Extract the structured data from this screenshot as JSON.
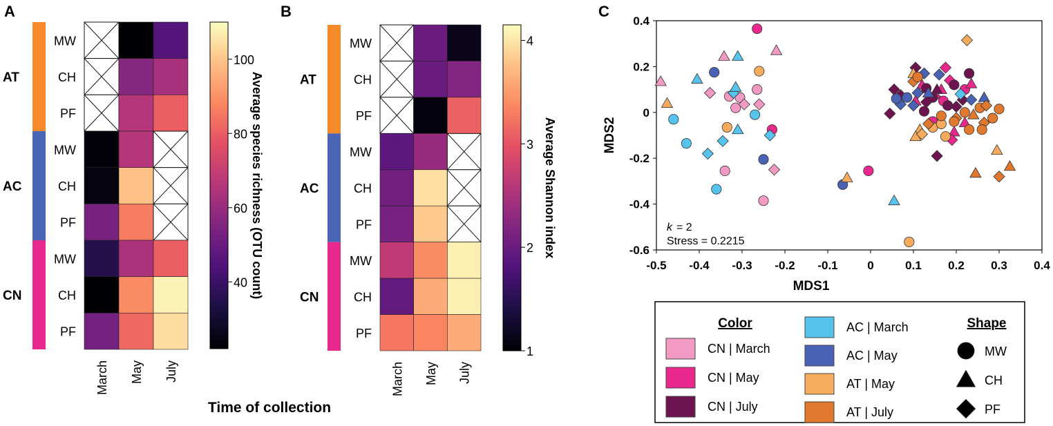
{
  "figure": {
    "panel_labels": [
      "A",
      "B",
      "C"
    ],
    "shared_xlabel": "Time of collection"
  },
  "chart_data": [
    {
      "type": "heatmap",
      "panel": "A",
      "rows": [
        "MW",
        "CH",
        "PF",
        "MW",
        "CH",
        "PF",
        "MW",
        "CH",
        "PF"
      ],
      "groups": [
        {
          "name": "AT",
          "color": "#f58a2a",
          "rows": [
            0,
            2
          ]
        },
        {
          "name": "AC",
          "color": "#4a65b5",
          "rows": [
            3,
            5
          ]
        },
        {
          "name": "CN",
          "color": "#e8288d",
          "rows": [
            6,
            8
          ]
        }
      ],
      "columns": [
        "March",
        "May",
        "July"
      ],
      "values": [
        [
          null,
          22,
          45
        ],
        [
          null,
          56,
          63
        ],
        [
          null,
          66,
          80
        ],
        [
          23,
          66,
          null
        ],
        [
          24,
          99,
          null
        ],
        [
          53,
          86,
          null
        ],
        [
          35,
          64,
          80
        ],
        [
          22,
          89,
          108
        ],
        [
          52,
          82,
          104
        ]
      ],
      "colorbar": {
        "label": "Average species richness (OTU count)",
        "range": [
          22,
          110
        ],
        "ticks": [
          40,
          60,
          80,
          100
        ]
      }
    },
    {
      "type": "heatmap",
      "panel": "B",
      "rows": [
        "MW",
        "CH",
        "PF",
        "MW",
        "CH",
        "PF",
        "MW",
        "CH",
        "PF"
      ],
      "groups": [
        {
          "name": "AT",
          "color": "#f58a2a",
          "rows": [
            0,
            2
          ]
        },
        {
          "name": "AC",
          "color": "#4a65b5",
          "rows": [
            3,
            5
          ]
        },
        {
          "name": "CN",
          "color": "#e8288d",
          "rows": [
            6,
            8
          ]
        }
      ],
      "columns": [
        "March",
        "May",
        "July"
      ],
      "values": [
        [
          null,
          2.0,
          1.15
        ],
        [
          null,
          2.0,
          2.2
        ],
        [
          null,
          1.05,
          3.1
        ],
        [
          1.9,
          2.35,
          null
        ],
        [
          2.05,
          3.95,
          null
        ],
        [
          2.1,
          3.8,
          null
        ],
        [
          2.65,
          3.4,
          4.05
        ],
        [
          1.95,
          3.6,
          4.05
        ],
        [
          3.25,
          3.35,
          3.6
        ]
      ],
      "colorbar": {
        "label": "Average Shannon index",
        "range": [
          1,
          4.15
        ],
        "ticks": [
          1,
          2,
          3,
          4
        ]
      }
    },
    {
      "type": "scatter",
      "panel": "C",
      "xlabel": "MDS1",
      "ylabel": "MDS2",
      "xlim": [
        -0.5,
        0.4
      ],
      "ylim": [
        -0.6,
        0.4
      ],
      "xticks": [
        "-0.5",
        "-0.4",
        "-0.3",
        "-0.2",
        "-0.1",
        "0",
        "0.1",
        "0.2",
        "0.3",
        "0.4"
      ],
      "yticks": [
        "-0.6",
        "-0.4",
        "-0.2",
        "0",
        "0.2",
        "0.4"
      ],
      "annotation": {
        "k_label": "k",
        "k_value": "= 2",
        "stress": "Stress = 0.2215"
      },
      "groups": {
        "CN_March": {
          "label": "CN | March",
          "color": "#f29ac4"
        },
        "CN_May": {
          "label": "CN | May",
          "color": "#e8288d"
        },
        "CN_July": {
          "label": "CN | July",
          "color": "#6d1450"
        },
        "AC_March": {
          "label": "AC | March",
          "color": "#55c3ec"
        },
        "AC_May": {
          "label": "AC | May",
          "color": "#4a62b4"
        },
        "AT_May": {
          "label": "AT | May",
          "color": "#f7ab5d"
        },
        "AT_July": {
          "label": "AT | July",
          "color": "#e0782d"
        }
      },
      "legend": {
        "color_title": "Color",
        "shape_title": "Shape",
        "color_entries": [
          "CN_March",
          "CN_May",
          "CN_July",
          "AC_March",
          "AC_May",
          "AT_May",
          "AT_July"
        ],
        "shape_entries": [
          {
            "shape": "circle",
            "label": "MW"
          },
          {
            "shape": "triangle",
            "label": "CH"
          },
          {
            "shape": "diamond",
            "label": "PF"
          }
        ]
      },
      "points": [
        {
          "x": -0.49,
          "y": 0.135,
          "shape": "triangle",
          "g": "CN_March"
        },
        {
          "x": -0.342,
          "y": 0.245,
          "shape": "triangle",
          "g": "CN_March"
        },
        {
          "x": -0.22,
          "y": 0.27,
          "shape": "triangle",
          "g": "CN_March"
        },
        {
          "x": -0.375,
          "y": 0.085,
          "shape": "diamond",
          "g": "CN_March"
        },
        {
          "x": -0.33,
          "y": 0.07,
          "shape": "circle",
          "g": "CN_March"
        },
        {
          "x": -0.315,
          "y": 0.02,
          "shape": "circle",
          "g": "CN_March"
        },
        {
          "x": -0.305,
          "y": 0.065,
          "shape": "circle",
          "g": "CN_March"
        },
        {
          "x": -0.295,
          "y": 0.035,
          "shape": "diamond",
          "g": "CN_March"
        },
        {
          "x": -0.265,
          "y": 0.1,
          "shape": "circle",
          "g": "CN_March"
        },
        {
          "x": -0.26,
          "y": 0.035,
          "shape": "diamond",
          "g": "CN_March"
        },
        {
          "x": -0.34,
          "y": -0.255,
          "shape": "circle",
          "g": "CN_March"
        },
        {
          "x": -0.225,
          "y": -0.25,
          "shape": "diamond",
          "g": "CN_March"
        },
        {
          "x": -0.25,
          "y": -0.385,
          "shape": "circle",
          "g": "CN_March"
        },
        {
          "x": -0.265,
          "y": 0.365,
          "shape": "circle",
          "g": "CN_May"
        },
        {
          "x": -0.23,
          "y": -0.075,
          "shape": "circle",
          "g": "CN_May"
        },
        {
          "x": -0.005,
          "y": -0.255,
          "shape": "circle",
          "g": "CN_May"
        },
        {
          "x": 0.175,
          "y": 0.195,
          "shape": "diamond",
          "g": "CN_May"
        },
        {
          "x": 0.12,
          "y": 0.12,
          "shape": "triangle",
          "g": "CN_May"
        },
        {
          "x": 0.165,
          "y": 0.1,
          "shape": "triangle",
          "g": "CN_May"
        },
        {
          "x": 0.185,
          "y": 0.14,
          "shape": "diamond",
          "g": "CN_May"
        },
        {
          "x": 0.22,
          "y": 0.1,
          "shape": "circle",
          "g": "CN_May"
        },
        {
          "x": 0.235,
          "y": 0.125,
          "shape": "triangle",
          "g": "CN_May"
        },
        {
          "x": 0.15,
          "y": 0.07,
          "shape": "diamond",
          "g": "CN_May"
        },
        {
          "x": 0.17,
          "y": 0.05,
          "shape": "circle",
          "g": "CN_May"
        },
        {
          "x": 0.195,
          "y": -0.085,
          "shape": "triangle",
          "g": "CN_May"
        },
        {
          "x": 0.19,
          "y": -0.12,
          "shape": "diamond",
          "g": "CN_May"
        },
        {
          "x": 0.22,
          "y": -0.045,
          "shape": "triangle",
          "g": "CN_May"
        },
        {
          "x": 0.105,
          "y": 0.05,
          "shape": "triangle",
          "g": "CN_May"
        },
        {
          "x": 0.145,
          "y": -0.04,
          "shape": "circle",
          "g": "CN_May"
        },
        {
          "x": 0.055,
          "y": 0.1,
          "shape": "diamond",
          "g": "CN_July"
        },
        {
          "x": 0.07,
          "y": 0.075,
          "shape": "diamond",
          "g": "CN_July"
        },
        {
          "x": 0.105,
          "y": 0.195,
          "shape": "diamond",
          "g": "CN_July"
        },
        {
          "x": 0.13,
          "y": 0.105,
          "shape": "circle",
          "g": "CN_July"
        },
        {
          "x": 0.125,
          "y": 0.005,
          "shape": "circle",
          "g": "CN_July"
        },
        {
          "x": 0.145,
          "y": 0.065,
          "shape": "circle",
          "g": "CN_July"
        },
        {
          "x": 0.155,
          "y": 0.1,
          "shape": "triangle",
          "g": "CN_July"
        },
        {
          "x": 0.18,
          "y": 0.03,
          "shape": "circle",
          "g": "CN_July"
        },
        {
          "x": 0.215,
          "y": 0.055,
          "shape": "diamond",
          "g": "CN_July"
        },
        {
          "x": 0.23,
          "y": 0.17,
          "shape": "circle",
          "g": "CN_July"
        },
        {
          "x": 0.2,
          "y": 0.025,
          "shape": "diamond",
          "g": "CN_July"
        },
        {
          "x": 0.045,
          "y": -0.005,
          "shape": "diamond",
          "g": "CN_July"
        },
        {
          "x": 0.13,
          "y": 0.045,
          "shape": "diamond",
          "g": "CN_July"
        },
        {
          "x": 0.155,
          "y": -0.19,
          "shape": "diamond",
          "g": "CN_July"
        },
        {
          "x": 0.195,
          "y": 0.12,
          "shape": "circle",
          "g": "CN_July"
        },
        {
          "x": -0.405,
          "y": 0.145,
          "shape": "triangle",
          "g": "AC_March"
        },
        {
          "x": -0.31,
          "y": 0.245,
          "shape": "triangle",
          "g": "AC_March"
        },
        {
          "x": -0.32,
          "y": 0.085,
          "shape": "diamond",
          "g": "AC_March"
        },
        {
          "x": -0.315,
          "y": 0.11,
          "shape": "triangle",
          "g": "AC_March"
        },
        {
          "x": -0.46,
          "y": -0.03,
          "shape": "circle",
          "g": "AC_March"
        },
        {
          "x": -0.43,
          "y": -0.135,
          "shape": "circle",
          "g": "AC_March"
        },
        {
          "x": -0.38,
          "y": -0.18,
          "shape": "diamond",
          "g": "AC_March"
        },
        {
          "x": -0.345,
          "y": -0.125,
          "shape": "diamond",
          "g": "AC_March"
        },
        {
          "x": -0.31,
          "y": -0.075,
          "shape": "triangle",
          "g": "AC_March"
        },
        {
          "x": -0.27,
          "y": -0.01,
          "shape": "circle",
          "g": "AC_March"
        },
        {
          "x": -0.235,
          "y": -0.1,
          "shape": "diamond",
          "g": "AC_March"
        },
        {
          "x": -0.36,
          "y": -0.335,
          "shape": "circle",
          "g": "AC_March"
        },
        {
          "x": 0.055,
          "y": -0.385,
          "shape": "triangle",
          "g": "AC_March"
        },
        {
          "x": 0.21,
          "y": 0.08,
          "shape": "diamond",
          "g": "AC_March"
        },
        {
          "x": -0.365,
          "y": 0.175,
          "shape": "circle",
          "g": "AC_May"
        },
        {
          "x": -0.25,
          "y": -0.205,
          "shape": "circle",
          "g": "AC_May"
        },
        {
          "x": -0.065,
          "y": -0.315,
          "shape": "circle",
          "g": "AC_May"
        },
        {
          "x": 0.07,
          "y": 0.035,
          "shape": "diamond",
          "g": "AC_May"
        },
        {
          "x": 0.085,
          "y": 0.065,
          "shape": "circle",
          "g": "AC_May"
        },
        {
          "x": 0.11,
          "y": 0.085,
          "shape": "diamond",
          "g": "AC_May"
        },
        {
          "x": 0.125,
          "y": 0.17,
          "shape": "diamond",
          "g": "AC_May"
        },
        {
          "x": 0.16,
          "y": 0.165,
          "shape": "diamond",
          "g": "AC_May"
        },
        {
          "x": 0.06,
          "y": 0.06,
          "shape": "circle",
          "g": "AC_May"
        },
        {
          "x": 0.135,
          "y": 0.085,
          "shape": "triangle",
          "g": "AC_May"
        },
        {
          "x": 0.235,
          "y": 0.055,
          "shape": "diamond",
          "g": "AC_May"
        },
        {
          "x": 0.265,
          "y": 0.065,
          "shape": "triangle",
          "g": "AC_May"
        },
        {
          "x": 0.1,
          "y": 0.03,
          "shape": "diamond",
          "g": "AC_May"
        },
        {
          "x": -0.26,
          "y": 0.18,
          "shape": "circle",
          "g": "AT_May"
        },
        {
          "x": -0.335,
          "y": -0.065,
          "shape": "circle",
          "g": "AT_May"
        },
        {
          "x": -0.475,
          "y": 0.04,
          "shape": "triangle",
          "g": "AT_May"
        },
        {
          "x": -0.055,
          "y": -0.285,
          "shape": "triangle",
          "g": "AT_May"
        },
        {
          "x": 0.09,
          "y": -0.565,
          "shape": "circle",
          "g": "AT_May"
        },
        {
          "x": 0.225,
          "y": 0.315,
          "shape": "diamond",
          "g": "AT_May"
        },
        {
          "x": 0.1,
          "y": 0.17,
          "shape": "triangle",
          "g": "AT_May"
        },
        {
          "x": 0.115,
          "y": -0.075,
          "shape": "triangle",
          "g": "AT_May"
        },
        {
          "x": 0.105,
          "y": -0.105,
          "shape": "triangle",
          "g": "AT_May"
        },
        {
          "x": 0.12,
          "y": -0.095,
          "shape": "diamond",
          "g": "AT_May"
        },
        {
          "x": 0.145,
          "y": -0.065,
          "shape": "circle",
          "g": "AT_May"
        },
        {
          "x": 0.165,
          "y": -0.05,
          "shape": "circle",
          "g": "AT_May"
        },
        {
          "x": 0.175,
          "y": -0.105,
          "shape": "circle",
          "g": "AT_May"
        },
        {
          "x": 0.295,
          "y": -0.165,
          "shape": "triangle",
          "g": "AT_May"
        },
        {
          "x": 0.1,
          "y": 0.135,
          "shape": "diamond",
          "g": "AT_July"
        },
        {
          "x": 0.11,
          "y": 0.155,
          "shape": "circle",
          "g": "AT_July"
        },
        {
          "x": 0.22,
          "y": 0.0,
          "shape": "circle",
          "g": "AT_July"
        },
        {
          "x": 0.24,
          "y": -0.01,
          "shape": "triangle",
          "g": "AT_July"
        },
        {
          "x": 0.255,
          "y": 0.02,
          "shape": "circle",
          "g": "AT_July"
        },
        {
          "x": 0.265,
          "y": -0.045,
          "shape": "diamond",
          "g": "AT_July"
        },
        {
          "x": 0.27,
          "y": 0.03,
          "shape": "diamond",
          "g": "AT_July"
        },
        {
          "x": 0.285,
          "y": -0.025,
          "shape": "circle",
          "g": "AT_July"
        },
        {
          "x": 0.3,
          "y": 0.015,
          "shape": "circle",
          "g": "AT_July"
        },
        {
          "x": 0.2,
          "y": -0.025,
          "shape": "diamond",
          "g": "AT_July"
        },
        {
          "x": 0.165,
          "y": -0.015,
          "shape": "circle",
          "g": "AT_July"
        },
        {
          "x": 0.195,
          "y": -0.04,
          "shape": "circle",
          "g": "AT_July"
        },
        {
          "x": 0.23,
          "y": -0.075,
          "shape": "circle",
          "g": "AT_July"
        },
        {
          "x": 0.26,
          "y": -0.075,
          "shape": "circle",
          "g": "AT_July"
        },
        {
          "x": 0.245,
          "y": -0.265,
          "shape": "triangle",
          "g": "AT_July"
        },
        {
          "x": 0.3,
          "y": -0.28,
          "shape": "diamond",
          "g": "AT_July"
        },
        {
          "x": 0.325,
          "y": -0.235,
          "shape": "triangle",
          "g": "AT_July"
        },
        {
          "x": 0.135,
          "y": -0.05,
          "shape": "diamond",
          "g": "AT_July"
        }
      ]
    }
  ]
}
